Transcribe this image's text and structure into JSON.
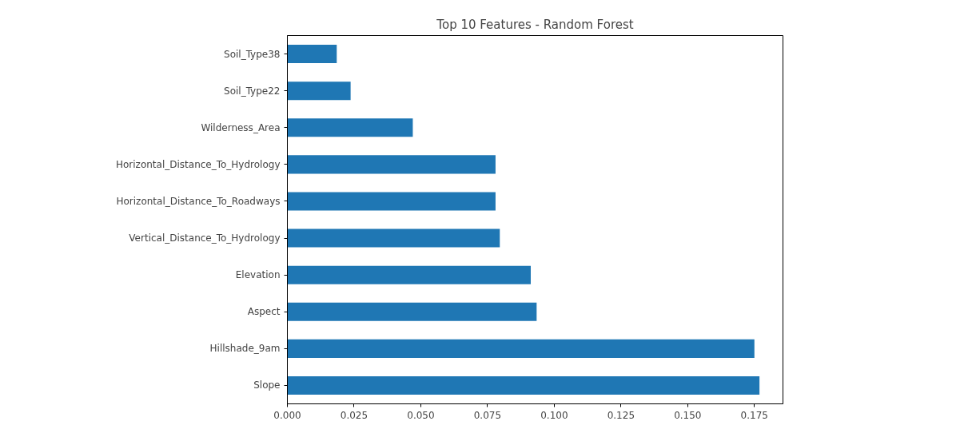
{
  "chart_data": {
    "type": "bar",
    "orientation": "horizontal",
    "title": "Top 10 Features - Random Forest",
    "categories": [
      "Soil_Type38",
      "Soil_Type22",
      "Wilderness_Area",
      "Horizontal_Distance_To_Hydrology",
      "Horizontal_Distance_To_Roadways",
      "Vertical_Distance_To_Hydrology",
      "Elevation",
      "Aspect",
      "Hillshade_9am",
      "Slope"
    ],
    "values": [
      0.0185,
      0.0237,
      0.047,
      0.078,
      0.078,
      0.0796,
      0.0912,
      0.0934,
      0.175,
      0.1769
    ],
    "color": "#1f77b4",
    "xlim": [
      0,
      0.1857
    ],
    "xticks": [
      {
        "value": 0,
        "label": "0.000"
      },
      {
        "value": 0.025,
        "label": "0.025"
      },
      {
        "value": 0.05,
        "label": "0.050"
      },
      {
        "value": 0.075,
        "label": "0.075"
      },
      {
        "value": 0.1,
        "label": "0.100"
      },
      {
        "value": 0.125,
        "label": "0.125"
      },
      {
        "value": 0.15,
        "label": "0.150"
      },
      {
        "value": 0.175,
        "label": "0.175"
      }
    ]
  }
}
